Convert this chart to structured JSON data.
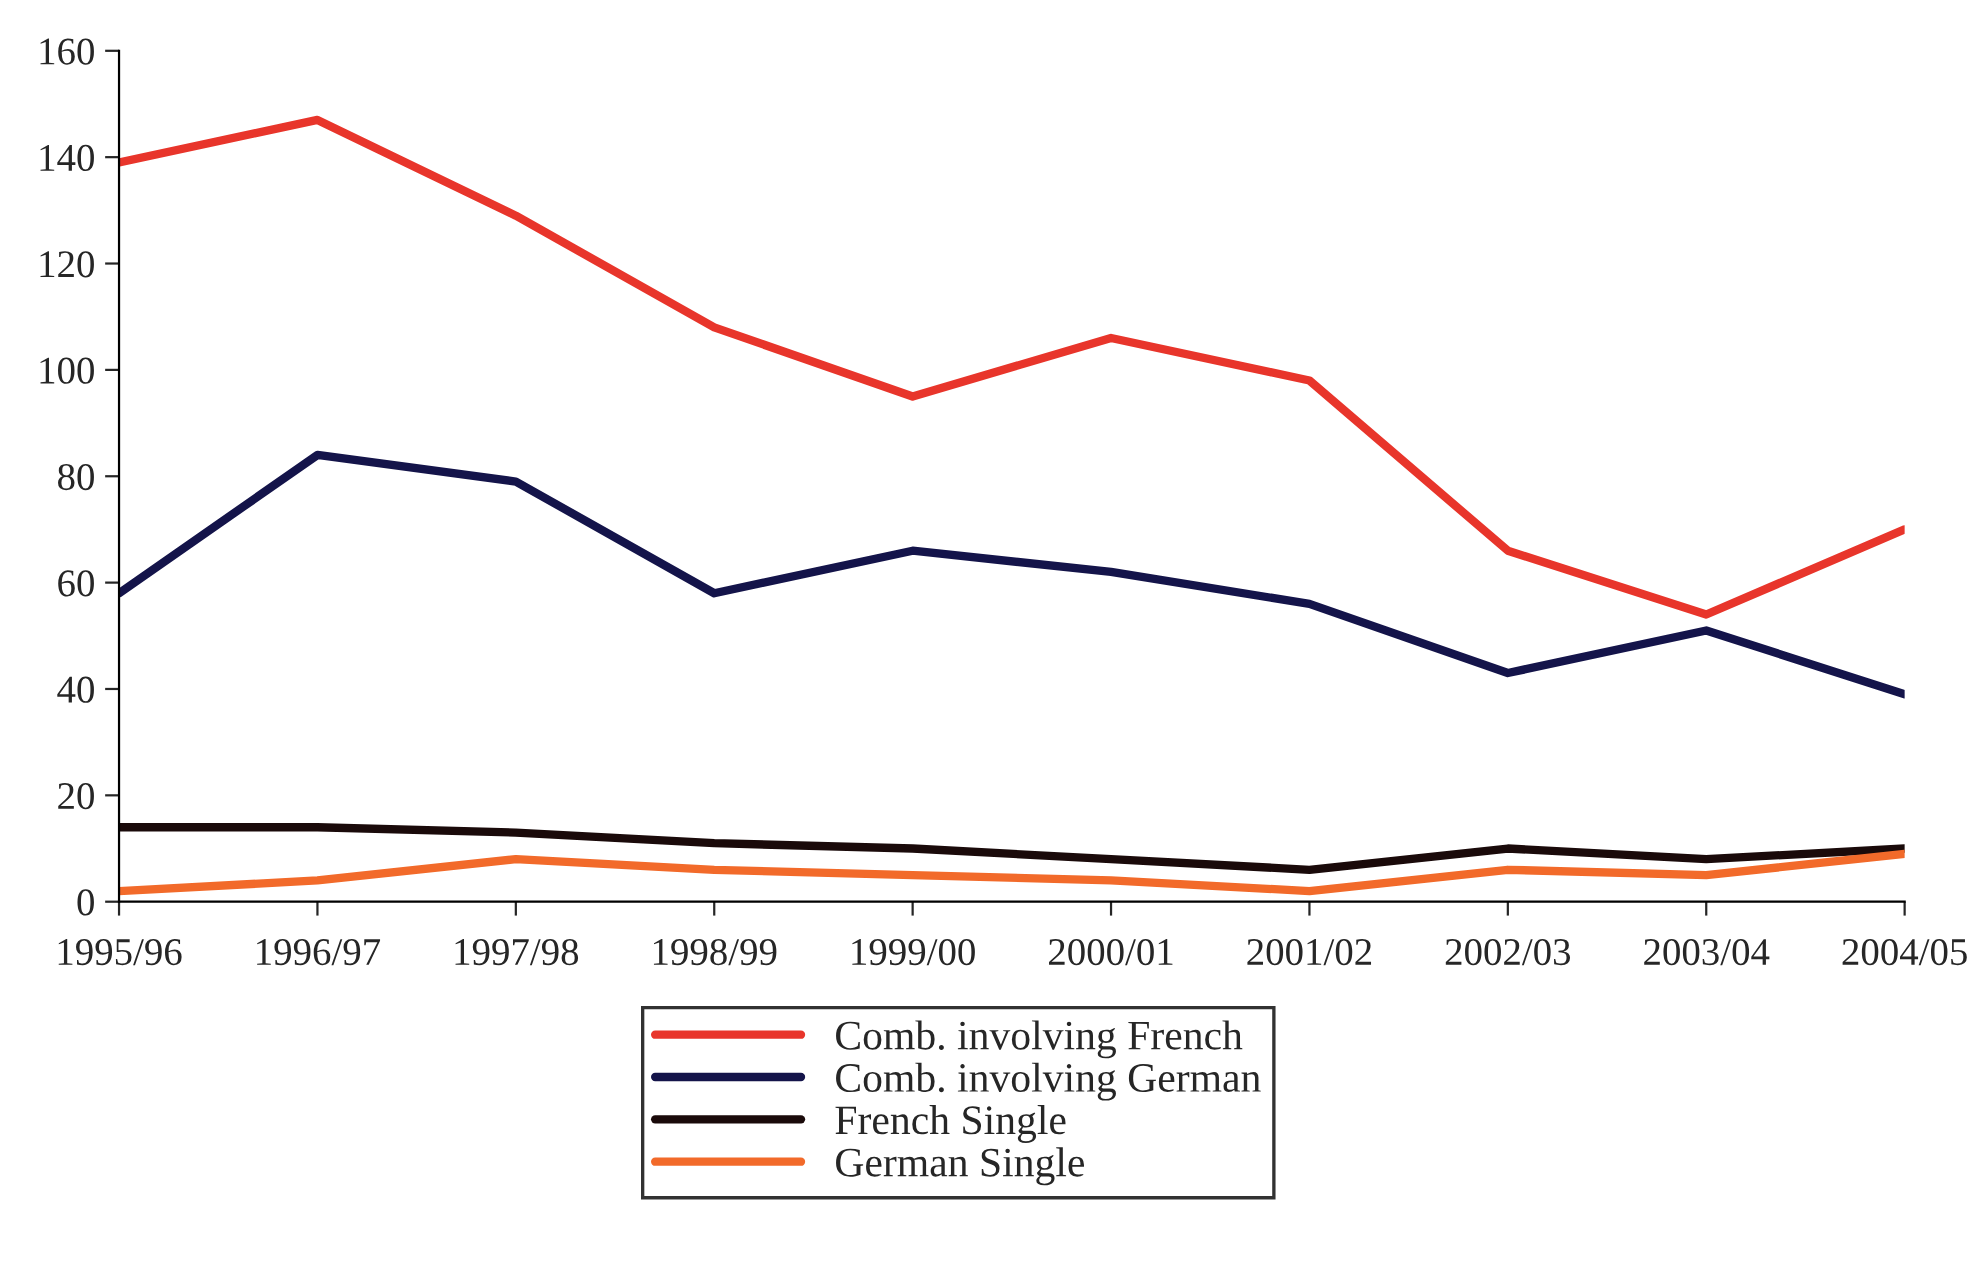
{
  "chart_data": {
    "type": "line",
    "categories": [
      "1995/96",
      "1996/97",
      "1997/98",
      "1998/99",
      "1999/00",
      "2000/01",
      "2001/02",
      "2002/03",
      "2003/04",
      "2004/05"
    ],
    "series": [
      {
        "name": "Comb. involving French",
        "color": "#e8352b",
        "values": [
          139,
          147,
          129,
          108,
          95,
          106,
          98,
          66,
          54,
          70
        ]
      },
      {
        "name": "Comb. involving German",
        "color": "#14144a",
        "values": [
          58,
          84,
          79,
          58,
          66,
          62,
          56,
          43,
          51,
          39
        ]
      },
      {
        "name": "French Single",
        "color": "#1a0a0a",
        "values": [
          14,
          14,
          13,
          11,
          10,
          8,
          6,
          10,
          8,
          10
        ]
      },
      {
        "name": "German Single",
        "color": "#f26a2a",
        "values": [
          2,
          4,
          8,
          6,
          5,
          4,
          2,
          6,
          5,
          9
        ]
      }
    ],
    "ylim": [
      0,
      160
    ],
    "yticks": [
      0,
      20,
      40,
      60,
      80,
      100,
      120,
      140,
      160
    ],
    "grid": false,
    "legend": "bottom",
    "marker": "none",
    "line_style": "solid"
  }
}
